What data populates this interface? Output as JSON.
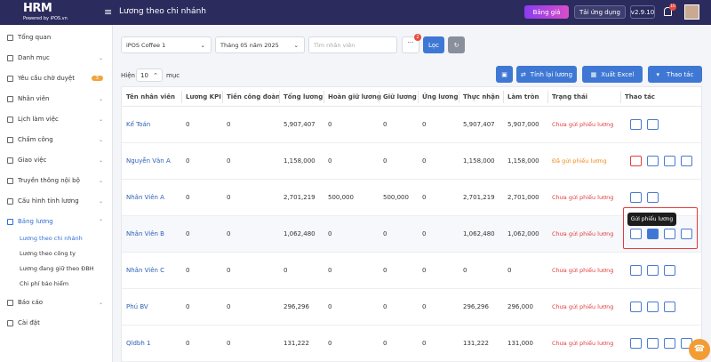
{
  "header": {
    "logo": "HRM",
    "logo_sub": "Powered by iPOS.vn",
    "title": "Lương theo chi nhánh",
    "pricing_button": "Bảng giá",
    "download_button": "Tải ứng dụng",
    "version": "v2.9.10",
    "notification_count": "10"
  },
  "sidebar": {
    "items": [
      {
        "label": "Tổng quan"
      },
      {
        "label": "Danh mục"
      },
      {
        "label": "Yêu cầu chờ duyệt",
        "badge": "3"
      },
      {
        "label": "Nhân viên"
      },
      {
        "label": "Lịch làm việc"
      },
      {
        "label": "Chấm công"
      },
      {
        "label": "Giao việc"
      },
      {
        "label": "Truyền thông nội bộ"
      },
      {
        "label": "Cấu hình tính lương"
      },
      {
        "label": "Bảng lương",
        "children": [
          "Lương theo chi nhánh",
          "Lương theo công ty",
          "Lương đang giữ theo ĐBH",
          "Chi phí bảo hiểm"
        ]
      },
      {
        "label": "Báo cáo"
      },
      {
        "label": "Cài đặt"
      }
    ]
  },
  "filters": {
    "branch": "iPOS Coffee 1",
    "month": "Tháng 05 năm 2025",
    "search_placeholder": "Tìm nhân viên",
    "more_badge": "2",
    "filter_button": "Lọc"
  },
  "toolbar": {
    "show_label": "Hiện",
    "page_size": "10",
    "entries_label": "mục",
    "recalc_button": "Tính lại lương",
    "export_button": "Xuất Excel",
    "actions_button": "Thao tác"
  },
  "table": {
    "columns": [
      "Tên nhân viên",
      "Lương KPI",
      "Tiền công đoàn",
      "Tổng lương",
      "Hoàn giữ lương",
      "Giữ lương",
      "Ứng lương",
      "Thực nhận",
      "Làm tròn",
      "Trạng thái",
      "Thao tác"
    ],
    "rows": [
      [
        "Kế Toán",
        "0",
        "0",
        "5,907,407",
        "0",
        "0",
        "0",
        "5,907,407",
        "5,907,000",
        "Chưa gửi phiếu lương"
      ],
      [
        "Nguyễn Văn A",
        "0",
        "0",
        "1,158,000",
        "0",
        "0",
        "0",
        "1,158,000",
        "1,158,000",
        "Đã gửi phiếu lương"
      ],
      [
        "Nhân Viên A",
        "0",
        "0",
        "2,701,219",
        "500,000",
        "500,000",
        "0",
        "2,701,219",
        "2,701,000",
        "Chưa gửi phiếu lương"
      ],
      [
        "Nhân Viên B",
        "0",
        "0",
        "1,062,480",
        "0",
        "0",
        "0",
        "1,062,480",
        "1,062,000",
        "Chưa gửi phiếu lương"
      ],
      [
        "Nhân Viên C",
        "0",
        "0",
        "0",
        "0",
        "0",
        "0",
        "0",
        "0",
        "Chưa gửi phiếu lương"
      ],
      [
        "Phú BV",
        "0",
        "0",
        "296,296",
        "0",
        "0",
        "0",
        "296,296",
        "296,000",
        "Chưa gửi phiếu lương"
      ],
      [
        "Qldbh 1",
        "0",
        "0",
        "131,222",
        "0",
        "0",
        "0",
        "131,222",
        "131,000",
        "Chưa gửi phiếu lương"
      ]
    ]
  },
  "tooltip": "Gửi phiếu lương"
}
